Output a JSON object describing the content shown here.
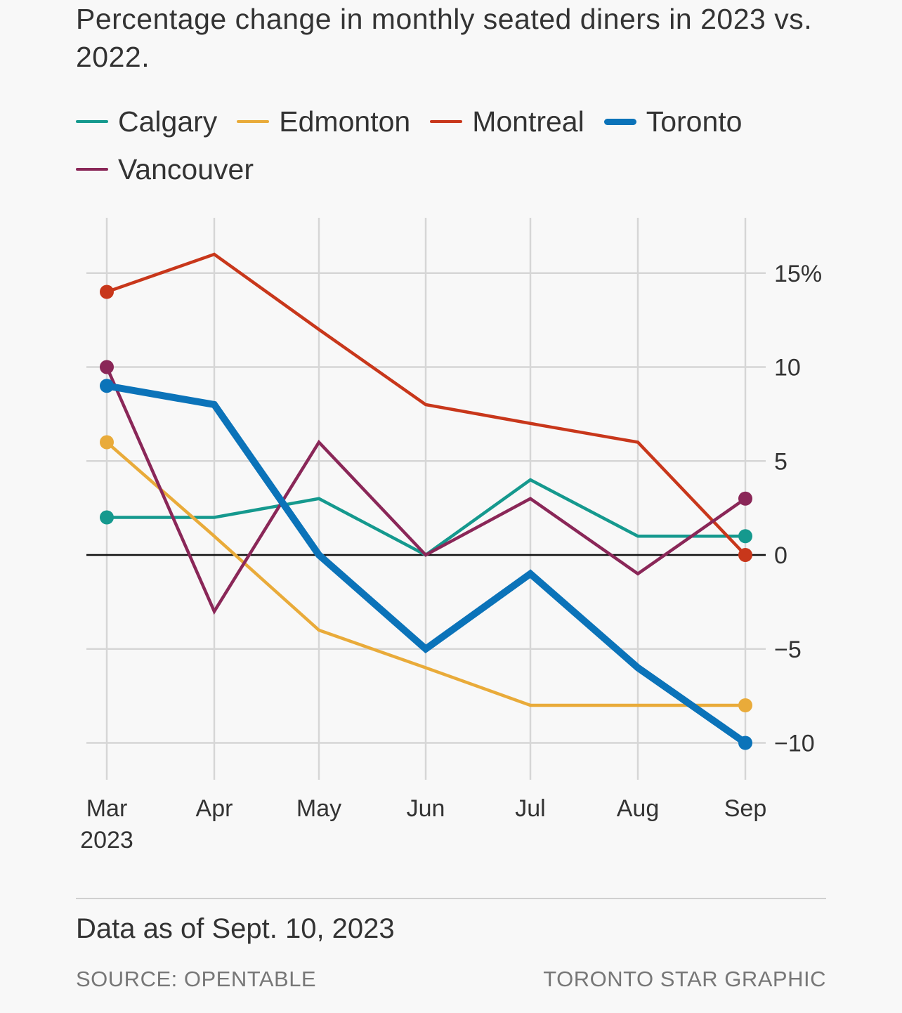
{
  "header": {
    "title": "Percentage change in monthly seated diners in 2023 vs. 2022."
  },
  "legend": [
    {
      "label": "Calgary",
      "color": "#15998e"
    },
    {
      "label": "Edmonton",
      "color": "#e9ab3a"
    },
    {
      "label": "Montreal",
      "color": "#c8371b"
    },
    {
      "label": "Toronto",
      "color": "#0b73b9"
    },
    {
      "label": "Vancouver",
      "color": "#8a2758"
    }
  ],
  "footer": {
    "note": "Data as of Sept. 10, 2023",
    "source": "SOURCE: OPENTABLE",
    "credit": "TORONTO STAR GRAPHIC"
  },
  "chart_data": {
    "type": "line",
    "title": "Percentage change in monthly seated diners in 2023 vs. 2022.",
    "x": [
      "Mar",
      "Apr",
      "May",
      "Jun",
      "Jul",
      "Aug",
      "Sep"
    ],
    "x_sublabel_first": "2023",
    "yticks": [
      {
        "value": 15,
        "label": "15%"
      },
      {
        "value": 10,
        "label": "10"
      },
      {
        "value": 5,
        "label": "5"
      },
      {
        "value": 0,
        "label": "0"
      },
      {
        "value": -5,
        "label": "−5"
      },
      {
        "value": -10,
        "label": "−10"
      }
    ],
    "ylim": [
      -12,
      18
    ],
    "grid": true,
    "zero_line": true,
    "y_axis_side": "right",
    "series": [
      {
        "name": "Calgary",
        "color": "#15998e",
        "values": [
          2,
          2,
          3,
          0,
          4,
          1,
          1
        ],
        "emphasis": false
      },
      {
        "name": "Edmonton",
        "color": "#e9ab3a",
        "values": [
          6,
          1,
          -4,
          -6,
          -8,
          -8,
          -8
        ],
        "emphasis": false
      },
      {
        "name": "Montreal",
        "color": "#c8371b",
        "values": [
          14,
          16,
          12,
          8,
          7,
          6,
          0
        ],
        "emphasis": false
      },
      {
        "name": "Vancouver",
        "color": "#8a2758",
        "values": [
          10,
          -3,
          6,
          0,
          3,
          -1,
          3
        ],
        "emphasis": false
      },
      {
        "name": "Toronto",
        "color": "#0b73b9",
        "values": [
          9,
          8,
          0,
          -5,
          -1,
          -6,
          -10
        ],
        "emphasis": true
      }
    ]
  }
}
